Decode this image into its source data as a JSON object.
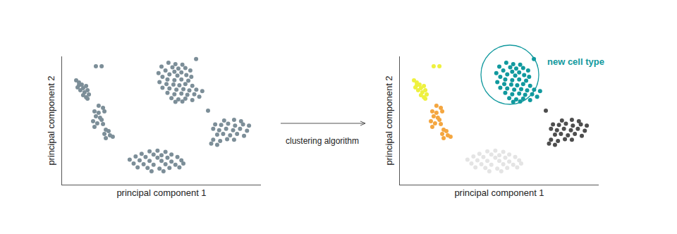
{
  "chart_data": [
    {
      "type": "scatter",
      "x_label": "principal component 1",
      "y_label": "principal component 2",
      "xlim": [
        0,
        100
      ],
      "ylim": [
        0,
        100
      ],
      "xticks": [],
      "yticks": [],
      "tick_labels": false,
      "grid": false,
      "marker": "circle",
      "series": [
        {
          "color": "#7c8e98",
          "x": [
            17.0,
            19.9,
            7.1,
            8.5,
            9.9,
            7.8,
            10.6,
            12.1,
            9.2,
            11.3,
            12.8,
            10.6,
            12.1,
            13.5,
            8.5,
            12.8
          ],
          "y": [
            92.3,
            92.3,
            81.3,
            79.7,
            78.0,
            75.8,
            75.3,
            76.9,
            73.6,
            72.0,
            73.6,
            69.8,
            68.1,
            70.3,
            77.5,
            67.0
          ]
        },
        {
          "color": "#7c8e98",
          "x": [
            18.4,
            20.6,
            16.3,
            18.4,
            21.3,
            17.0,
            19.1,
            15.6,
            17.7,
            20.6,
            16.3,
            22.0,
            23.4,
            21.3,
            24.1,
            22.0,
            25.5,
            19.9
          ],
          "y": [
            61.5,
            59.9,
            57.1,
            56.0,
            57.1,
            53.3,
            52.2,
            49.5,
            47.8,
            47.3,
            45.1,
            42.9,
            41.8,
            39.6,
            38.5,
            36.3,
            37.4,
            50.5
          ]
        },
        {
          "color": "#7c8e98",
          "x": [
            67.4,
            53.5,
            57.0,
            60.5,
            50.0,
            55.5,
            58.5,
            62.0,
            64.5,
            52.0,
            56.5,
            60.0,
            48.5,
            54.0,
            58.0,
            62.5,
            65.0,
            50.5,
            53.0,
            56.5,
            60.0,
            63.5,
            49.0,
            52.5,
            56.0,
            59.0,
            62.0,
            65.5,
            50.5,
            54.0,
            57.5,
            61.0,
            64.0,
            67.5,
            70.5,
            53.0,
            56.5,
            60.0,
            63.0,
            66.5,
            55.0,
            58.5,
            62.0,
            65.5,
            69.0,
            57.0,
            60.5
          ],
          "y": [
            98,
            95,
            94,
            93.5,
            92,
            91.5,
            90.5,
            91,
            89,
            89,
            88,
            87.5,
            87,
            86,
            85,
            85.5,
            84,
            84,
            82,
            81.5,
            82,
            81,
            80,
            78.5,
            78,
            77.5,
            78.5,
            77,
            75.5,
            75,
            74,
            74.5,
            73.5,
            74,
            73,
            71.5,
            70.5,
            71,
            70,
            70.5,
            67.5,
            66.5,
            67,
            66,
            68.5,
            64.5,
            64.8
          ]
        },
        {
          "color": "#7c8e98",
          "x": [
            73.4,
            81.5,
            86.5,
            90,
            77,
            80,
            83.5,
            87,
            91,
            94,
            76,
            79,
            82.5,
            86,
            89.5,
            93,
            78,
            81,
            84.5,
            88,
            91.5,
            76,
            79.5,
            83,
            86.5,
            75,
            78
          ],
          "y": [
            57.7,
            50,
            50.5,
            49.5,
            47,
            46.5,
            47.5,
            46,
            47,
            46,
            43.5,
            42.5,
            43.5,
            42.5,
            43.5,
            42,
            39,
            39.5,
            38.5,
            39.5,
            38,
            35,
            34,
            35.5,
            35,
            32,
            31
          ]
        },
        {
          "color": "#7c8e98",
          "x": [
            44,
            48,
            52,
            40,
            46,
            50,
            55,
            37,
            42,
            48,
            53,
            58,
            34,
            39,
            44,
            50,
            55,
            60,
            36,
            41,
            46,
            52,
            57,
            61,
            38,
            43,
            49,
            54,
            59,
            45,
            51
          ],
          "y": [
            26,
            26.5,
            25.5,
            24,
            23.5,
            23,
            23.5,
            22,
            21.5,
            21,
            21,
            21.5,
            19.5,
            19,
            18.5,
            18.5,
            18,
            19,
            16.5,
            16,
            15.5,
            16,
            15.5,
            16.5,
            13.5,
            13,
            12.5,
            13,
            13.5,
            10.5,
            10.5
          ]
        }
      ]
    },
    {
      "type": "scatter",
      "x_label": "principal component 1",
      "y_label": "principal component 2",
      "xlim": [
        0,
        100
      ],
      "ylim": [
        0,
        100
      ],
      "xticks": [],
      "yticks": [],
      "tick_labels": false,
      "grid": false,
      "marker": "circle",
      "annotation": "new cell type",
      "series": [
        {
          "color": "#eef13f",
          "x": [
            17.0,
            19.9,
            7.1,
            8.5,
            9.9,
            7.8,
            10.6,
            12.1,
            9.2,
            11.3,
            12.8,
            10.6,
            12.1,
            13.5,
            8.5,
            12.8
          ],
          "y": [
            92.3,
            92.3,
            81.3,
            79.7,
            78.0,
            75.8,
            75.3,
            76.9,
            73.6,
            72.0,
            73.6,
            69.8,
            68.1,
            70.3,
            77.5,
            67.0
          ]
        },
        {
          "color": "#f4a640",
          "x": [
            18.4,
            20.6,
            16.3,
            18.4,
            21.3,
            17.0,
            19.1,
            15.6,
            17.7,
            20.6,
            16.3,
            22.0,
            23.4,
            21.3,
            24.1,
            22.0,
            25.5,
            19.9
          ],
          "y": [
            61.5,
            59.9,
            57.1,
            56.0,
            57.1,
            53.3,
            52.2,
            49.5,
            47.8,
            47.3,
            45.1,
            42.9,
            41.8,
            39.6,
            38.5,
            36.3,
            37.4,
            50.5
          ]
        },
        {
          "color": "#11999e",
          "x": [
            67.4,
            53.5,
            57.0,
            60.5,
            50.0,
            55.5,
            58.5,
            62.0,
            64.5,
            52.0,
            56.5,
            60.0,
            48.5,
            54.0,
            58.0,
            62.5,
            65.0,
            50.5,
            53.0,
            56.5,
            60.0,
            63.5,
            49.0,
            52.5,
            56.0,
            59.0,
            62.0,
            65.5,
            50.5,
            54.0,
            57.5,
            61.0,
            64.0,
            67.5,
            70.5,
            53.0,
            56.5,
            60.0,
            63.0,
            66.5,
            55.0,
            58.5,
            62.0,
            65.5,
            69.0,
            57.0,
            60.5
          ],
          "y": [
            98,
            95,
            94,
            93.5,
            92,
            91.5,
            90.5,
            91,
            89,
            89,
            88,
            87.5,
            87,
            86,
            85,
            85.5,
            84,
            84,
            82,
            81.5,
            82,
            81,
            80,
            78.5,
            78,
            77.5,
            78.5,
            77,
            75.5,
            75,
            74,
            74.5,
            73.5,
            74,
            73,
            71.5,
            70.5,
            71,
            70,
            70.5,
            67.5,
            66.5,
            67,
            66,
            68.5,
            64.5,
            64.8
          ]
        },
        {
          "color": "#4d4d4d",
          "x": [
            73.4,
            81.5,
            86.5,
            90,
            77,
            80,
            83.5,
            87,
            91,
            94,
            76,
            79,
            82.5,
            86,
            89.5,
            93,
            78,
            81,
            84.5,
            88,
            91.5,
            76,
            79.5,
            83,
            86.5,
            75,
            78
          ],
          "y": [
            57.7,
            50,
            50.5,
            49.5,
            47,
            46.5,
            47.5,
            46,
            47,
            46,
            43.5,
            42.5,
            43.5,
            42.5,
            43.5,
            42,
            39,
            39.5,
            38.5,
            39.5,
            38,
            35,
            34,
            35.5,
            35,
            32,
            31
          ]
        },
        {
          "color": "#e4e4e4",
          "x": [
            44,
            48,
            52,
            40,
            46,
            50,
            55,
            37,
            42,
            48,
            53,
            58,
            34,
            39,
            44,
            50,
            55,
            60,
            36,
            41,
            46,
            52,
            57,
            61,
            38,
            43,
            49,
            54,
            59,
            45,
            51
          ],
          "y": [
            26,
            26.5,
            25.5,
            24,
            23.5,
            23,
            23.5,
            22,
            21.5,
            21,
            21,
            21.5,
            19.5,
            19,
            18.5,
            18.5,
            18,
            19,
            16.5,
            16,
            15.5,
            16,
            15.5,
            16.5,
            13.5,
            13,
            12.5,
            13,
            13.5,
            10.5,
            10.5
          ]
        }
      ]
    }
  ],
  "arrow_label": "clustering algorithm"
}
